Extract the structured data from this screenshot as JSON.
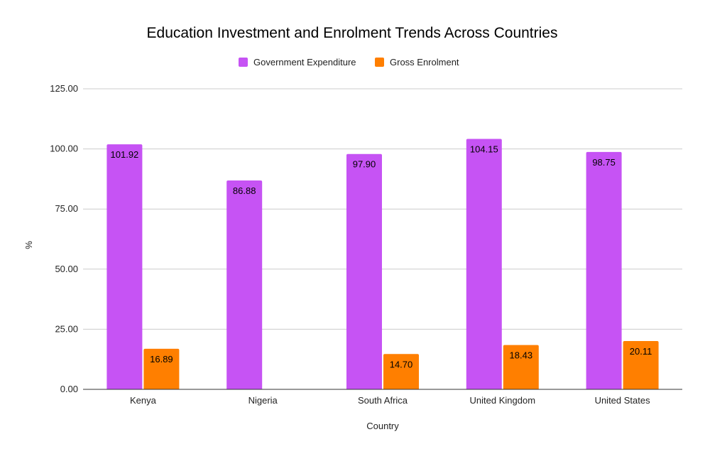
{
  "chart_data": {
    "type": "bar",
    "title": "Education Investment and Enrolment Trends Across Countries",
    "xlabel": "Country",
    "ylabel": "%",
    "categories": [
      "Kenya",
      "Nigeria",
      "South Africa",
      "United Kingdom",
      "United States"
    ],
    "series": [
      {
        "name": "Government Expenditure",
        "color": "#c653f4",
        "values": [
          101.92,
          86.88,
          97.9,
          104.15,
          98.75
        ]
      },
      {
        "name": "Gross Enrolment",
        "color": "#ff7f00",
        "values": [
          16.89,
          null,
          14.7,
          18.43,
          20.11
        ]
      }
    ],
    "ylim": [
      0,
      125
    ],
    "yticks": [
      "0.00",
      "25.00",
      "50.00",
      "75.00",
      "100.00",
      "125.00"
    ],
    "grid": true,
    "legend_position": "top-center"
  }
}
